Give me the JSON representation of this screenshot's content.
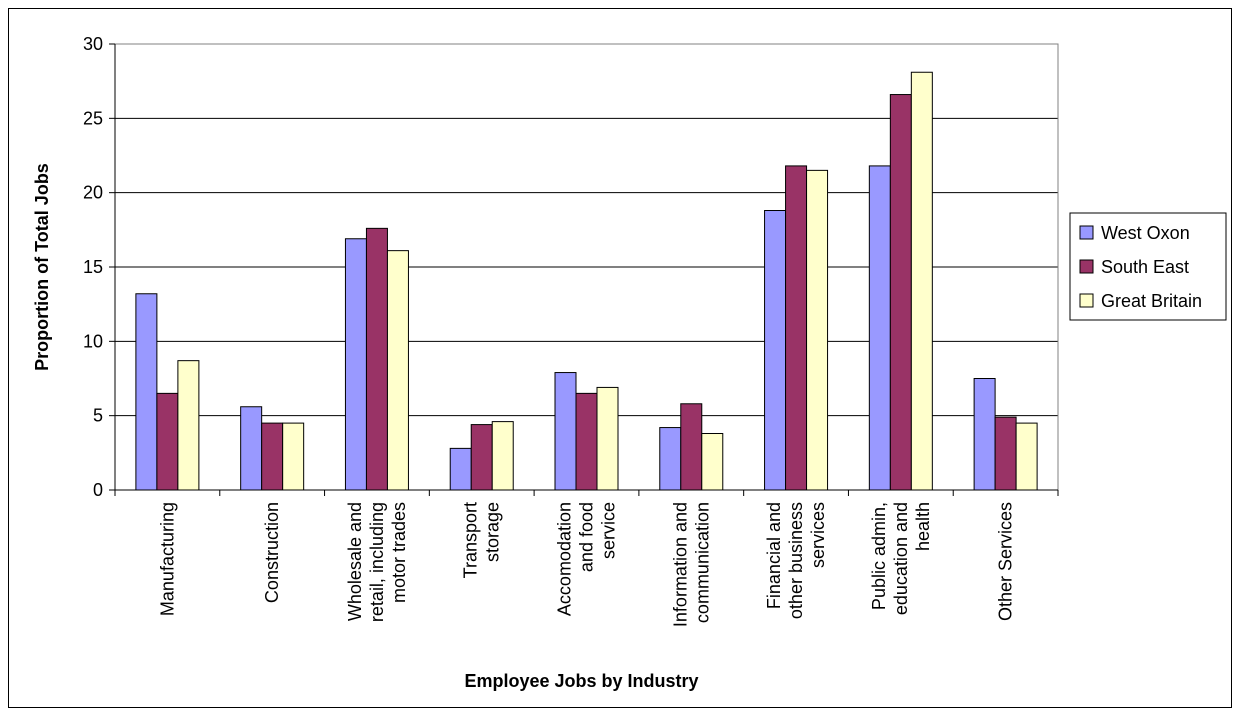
{
  "chart_data": {
    "type": "bar",
    "title": "",
    "xlabel": "Employee Jobs by Industry",
    "ylabel": "Proportion of Total Jobs",
    "ylim": [
      0,
      30
    ],
    "yticks": [
      0,
      5,
      10,
      15,
      20,
      25,
      30
    ],
    "grid": true,
    "legend_position": "right",
    "categories": [
      [
        "Manufacturing"
      ],
      [
        "Construction"
      ],
      [
        "Wholesale and",
        "retail, including",
        "motor trades"
      ],
      [
        "Transport",
        "storage"
      ],
      [
        "Accomodation",
        "and food",
        "service"
      ],
      [
        "Information and",
        "communication"
      ],
      [
        "Financial and",
        "other business",
        "services"
      ],
      [
        "Public admin,",
        "education and",
        "health"
      ],
      [
        "Other Services"
      ]
    ],
    "series": [
      {
        "name": "West Oxon",
        "color": "#9999ff",
        "values": [
          13.2,
          5.6,
          16.9,
          2.8,
          7.9,
          4.2,
          18.8,
          21.8,
          7.5
        ]
      },
      {
        "name": "South East",
        "color": "#993366",
        "values": [
          6.5,
          4.5,
          17.6,
          4.4,
          6.5,
          5.8,
          21.8,
          26.6,
          4.9
        ]
      },
      {
        "name": "Great Britain",
        "color": "#ffffcc",
        "values": [
          8.7,
          4.5,
          16.1,
          4.6,
          6.9,
          3.8,
          21.5,
          28.1,
          4.5
        ]
      }
    ]
  }
}
